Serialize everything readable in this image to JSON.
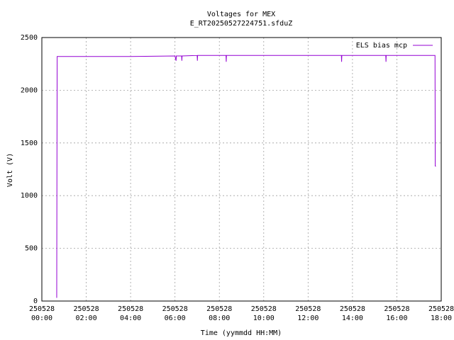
{
  "chart_data": {
    "type": "line",
    "title": "Voltages for MEX",
    "subtitle": "E_RT20250527224751.sfduZ",
    "x_label": "Time (yymmdd HH:MM)",
    "y_label": "Volt (V)",
    "x": [
      0.67,
      0.68,
      0.69,
      2.0,
      4.0,
      6.0,
      6.05,
      6.06,
      6.3,
      6.31,
      6.32,
      7.0,
      7.01,
      7.02,
      8.0,
      8.3,
      8.31,
      8.32,
      10.0,
      12.0,
      13.5,
      13.51,
      13.52,
      15.5,
      15.51,
      15.52,
      17.0,
      17.72,
      17.73,
      17.76
    ],
    "series": [
      {
        "name": "ELS bias mcp",
        "color": "#9400d3",
        "values": [
          30,
          1280,
          2320,
          2320,
          2320,
          2325,
          2280,
          2325,
          2325,
          2280,
          2325,
          2330,
          2280,
          2330,
          2330,
          2330,
          2270,
          2330,
          2330,
          2330,
          2330,
          2270,
          2330,
          2330,
          2270,
          2330,
          2330,
          2330,
          1280,
          1280
        ]
      }
    ],
    "xlim": [
      0,
      18
    ],
    "xticks": [
      {
        "value": 0,
        "label": "250528\n00:00"
      },
      {
        "value": 2,
        "label": "250528\n02:00"
      },
      {
        "value": 4,
        "label": "250528\n04:00"
      },
      {
        "value": 6,
        "label": "250528\n06:00"
      },
      {
        "value": 8,
        "label": "250528\n08:00"
      },
      {
        "value": 10,
        "label": "250528\n10:00"
      },
      {
        "value": 12,
        "label": "250528\n12:00"
      },
      {
        "value": 14,
        "label": "250528\n14:00"
      },
      {
        "value": 16,
        "label": "250528\n16:00"
      },
      {
        "value": 18,
        "label": "250528\n18:00"
      }
    ],
    "ylim": [
      0,
      2500
    ],
    "yticks": [
      0,
      500,
      1000,
      1500,
      2000,
      2500
    ],
    "grid": true,
    "legend": "top-right"
  }
}
